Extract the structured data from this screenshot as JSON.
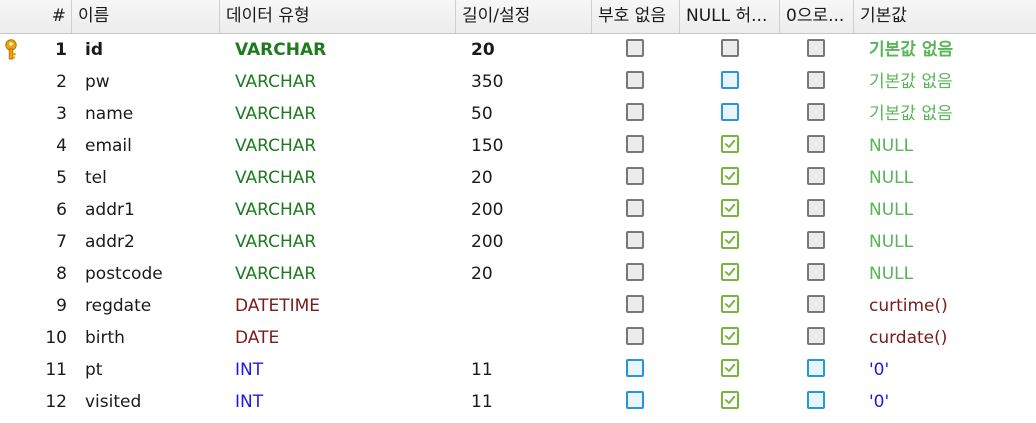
{
  "headers": {
    "num": "#",
    "name": "이름",
    "type": "데이터 유형",
    "length": "길이/설정",
    "unsigned": "부호 없음",
    "allow_null": "NULL 허...",
    "zerofill": "0으로...",
    "default": "기본값"
  },
  "rows": [
    {
      "num": "1",
      "name": "id",
      "type": "VARCHAR",
      "length": "20",
      "unsigned": "unchecked",
      "allow_null": "unchecked",
      "zerofill": "unchecked",
      "default": "기본값 없음",
      "primary_key": true
    },
    {
      "num": "2",
      "name": "pw",
      "type": "VARCHAR",
      "length": "350",
      "unsigned": "unchecked",
      "allow_null": "highlighted",
      "zerofill": "unchecked",
      "default": "기본값 없음"
    },
    {
      "num": "3",
      "name": "name",
      "type": "VARCHAR",
      "length": "50",
      "unsigned": "unchecked",
      "allow_null": "highlighted",
      "zerofill": "unchecked",
      "default": "기본값 없음"
    },
    {
      "num": "4",
      "name": "email",
      "type": "VARCHAR",
      "length": "150",
      "unsigned": "unchecked",
      "allow_null": "checked",
      "zerofill": "unchecked",
      "default": "NULL"
    },
    {
      "num": "5",
      "name": "tel",
      "type": "VARCHAR",
      "length": "20",
      "unsigned": "unchecked",
      "allow_null": "checked",
      "zerofill": "unchecked",
      "default": "NULL"
    },
    {
      "num": "6",
      "name": "addr1",
      "type": "VARCHAR",
      "length": "200",
      "unsigned": "unchecked",
      "allow_null": "checked",
      "zerofill": "unchecked",
      "default": "NULL"
    },
    {
      "num": "7",
      "name": "addr2",
      "type": "VARCHAR",
      "length": "200",
      "unsigned": "unchecked",
      "allow_null": "checked",
      "zerofill": "unchecked",
      "default": "NULL"
    },
    {
      "num": "8",
      "name": "postcode",
      "type": "VARCHAR",
      "length": "20",
      "unsigned": "unchecked",
      "allow_null": "checked",
      "zerofill": "unchecked",
      "default": "NULL"
    },
    {
      "num": "9",
      "name": "regdate",
      "type": "DATETIME",
      "length": "",
      "unsigned": "unchecked",
      "allow_null": "checked",
      "zerofill": "unchecked",
      "default": "curtime()"
    },
    {
      "num": "10",
      "name": "birth",
      "type": "DATE",
      "length": "",
      "unsigned": "unchecked",
      "allow_null": "checked",
      "zerofill": "unchecked",
      "default": "curdate()"
    },
    {
      "num": "11",
      "name": "pt",
      "type": "INT",
      "length": "11",
      "unsigned": "highlighted",
      "allow_null": "checked",
      "zerofill": "highlighted",
      "default": "'0'"
    },
    {
      "num": "12",
      "name": "visited",
      "type": "INT",
      "length": "11",
      "unsigned": "highlighted",
      "allow_null": "checked",
      "zerofill": "highlighted",
      "default": "'0'"
    }
  ],
  "icons": {
    "primary_key": "key-icon",
    "check": "check-icon"
  },
  "colors": {
    "varchar": "#1f7a1f",
    "datetime": "#7a1b1b",
    "int": "#1a1aee",
    "default_none": "#58b558",
    "checkbox_checked": "#7ab53e",
    "checkbox_highlight": "#2a94e0",
    "key": "#f0a30a"
  }
}
